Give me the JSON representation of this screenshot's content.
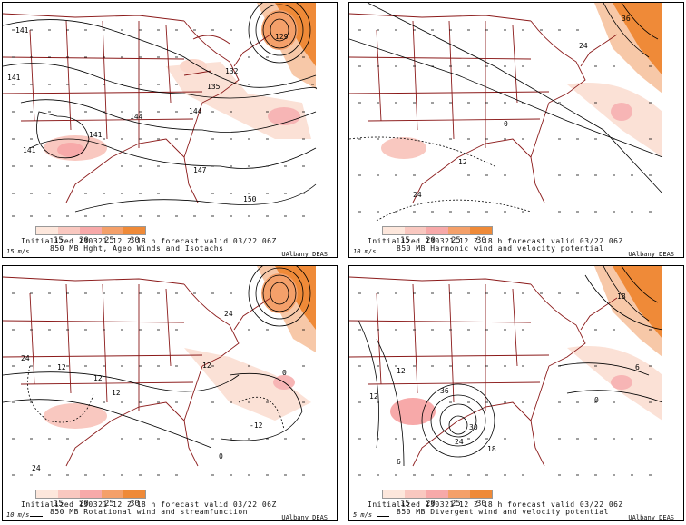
{
  "colorbar": {
    "labels": [
      "15",
      "20",
      "25",
      "30"
    ],
    "colors": [
      "#fde7dc",
      "#f9c8c0",
      "#f7a9a9",
      "#f4a06a",
      "#ef8a38"
    ]
  },
  "panels": [
    {
      "id": "p1",
      "init_line": "Initialized 130321 12 Z  18 h forecast valid 03/22 06Z",
      "title": "850 MB Hght, Ageo Winds and Isotachs",
      "ref_vector": "15 m/s",
      "credit": "UAlbany DEAS",
      "contour_labels": [
        "141",
        "141",
        "141",
        "129",
        "132",
        "135",
        "144",
        "144",
        "141",
        "147",
        "150"
      ]
    },
    {
      "id": "p2",
      "init_line": "Initialized 130321 12 Z  18 h forecast valid 03/22 06Z",
      "title": "850 MB Harmonic wind and velocity potential",
      "ref_vector": "10 m/s",
      "credit": "UAlbany DEAS",
      "contour_labels": [
        "36",
        "24",
        "0",
        "12",
        "24"
      ]
    },
    {
      "id": "p3",
      "init_line": "Initialized 130321 12 Z  18 h forecast valid 03/22 06Z",
      "title": "850 MB Rotational wind and streamfunction",
      "ref_vector": "10 m/s",
      "credit": "UAlbany DEAS",
      "contour_labels": [
        "24",
        "24",
        "12",
        "12",
        "12",
        "0",
        "-12",
        "24",
        "0",
        "12"
      ]
    },
    {
      "id": "p4",
      "init_line": "Initialized 130321 12 Z  18 h forecast valid 03/22 06Z",
      "title": "850 MB Divergent wind and velocity potential",
      "ref_vector": "5 m/s",
      "credit": "UAlbany DEAS",
      "contour_labels": [
        "18",
        "12",
        "12",
        "36",
        "30",
        "24",
        "18",
        "6",
        "6",
        "0"
      ]
    }
  ]
}
